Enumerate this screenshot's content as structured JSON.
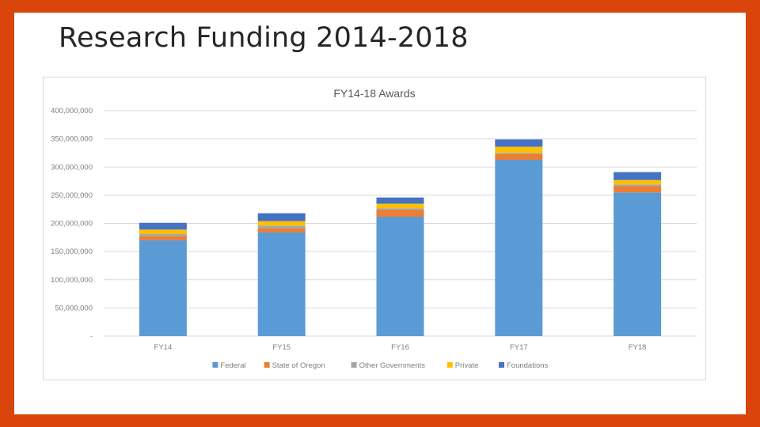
{
  "slide": {
    "title": "Research Funding 2014-2018",
    "colors": {
      "background": "#D9450B",
      "slide": "#FFFFFF"
    }
  },
  "chart_data": {
    "type": "bar",
    "stacked": true,
    "title": "FY14-18 Awards",
    "xlabel": "",
    "ylabel": "",
    "categories": [
      "FY14",
      "FY15",
      "FY16",
      "FY17",
      "FY18"
    ],
    "ylim": [
      0,
      400000000
    ],
    "yticks": [
      0,
      50000000,
      100000000,
      150000000,
      200000000,
      250000000,
      300000000,
      350000000,
      400000000
    ],
    "ytick_labels": [
      "-",
      "50,000,000",
      "100,000,000",
      "150,000,000",
      "200,000,000",
      "250,000,000",
      "300,000,000",
      "350,000,000",
      "400,000,000"
    ],
    "grid": true,
    "legend_position": "bottom",
    "series": [
      {
        "name": "Federal",
        "color": "#5B9BD5",
        "values": [
          170000000,
          184000000,
          212000000,
          313000000,
          255000000
        ]
      },
      {
        "name": "State of Oregon",
        "color": "#ED7D31",
        "values": [
          7000000,
          7000000,
          12000000,
          10000000,
          11000000
        ]
      },
      {
        "name": "Other Governments",
        "color": "#A5A5A5",
        "values": [
          4000000,
          5000000,
          3000000,
          2000000,
          3000000
        ]
      },
      {
        "name": "Private",
        "color": "#FFC000",
        "values": [
          8000000,
          8000000,
          8000000,
          11000000,
          8000000
        ]
      },
      {
        "name": "Foundations",
        "color": "#4472C4",
        "values": [
          12000000,
          14000000,
          11000000,
          13000000,
          14000000
        ]
      }
    ]
  }
}
